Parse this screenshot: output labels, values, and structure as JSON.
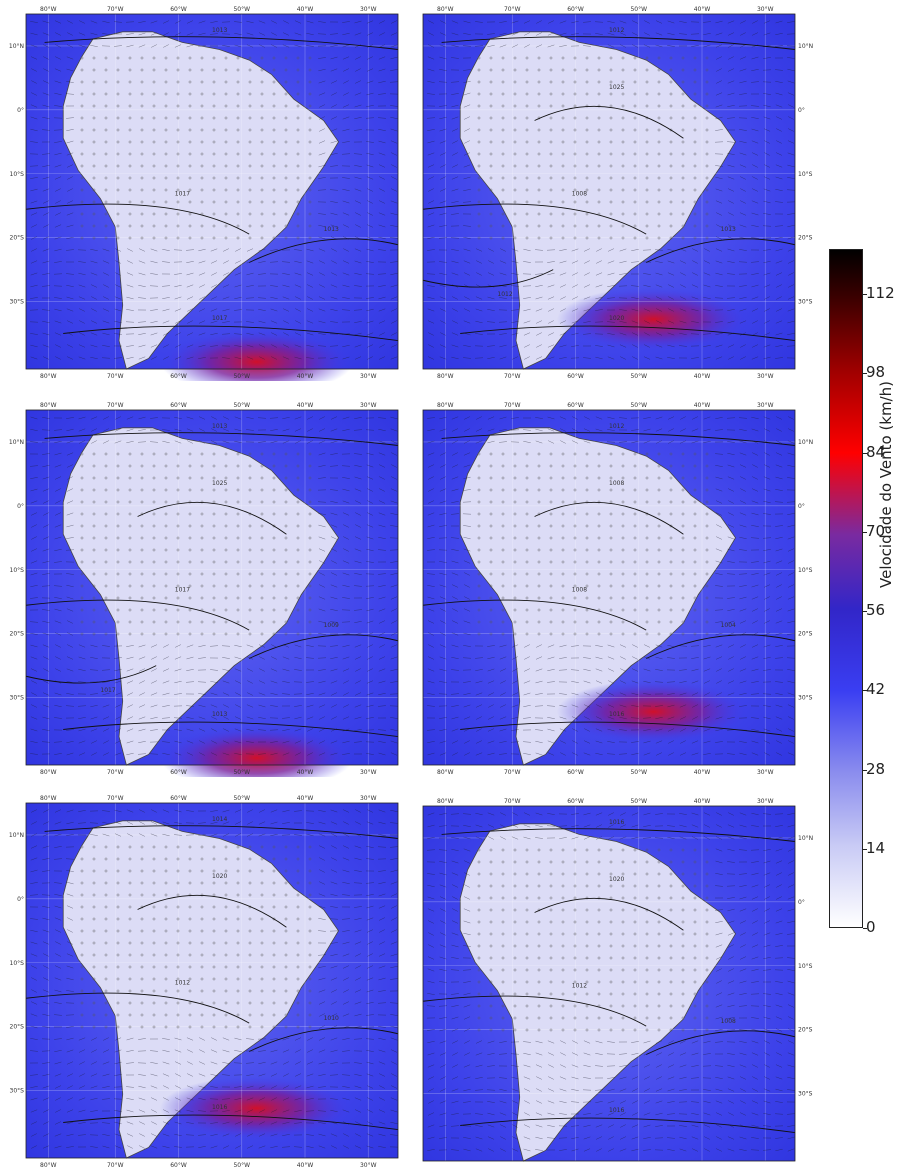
{
  "panels": [
    {
      "id": "a",
      "top_lon_labels": [
        "80°W",
        "70°W",
        "60°W",
        "50°W",
        "40°W",
        "30°W"
      ],
      "bottom_lon_labels": [
        "80°W",
        "70°W",
        "60°W",
        "50°W",
        "40°W",
        "30°W"
      ],
      "lat_labels": [
        "10°N",
        "0°",
        "10°S",
        "20°S",
        "30°S"
      ],
      "lat_side": "left",
      "isobars": [
        "1013",
        "1017",
        "1013",
        "1017"
      ],
      "jet": "south"
    },
    {
      "id": "b",
      "top_lon_labels": [
        "80°W",
        "70°W",
        "60°W",
        "50°W",
        "40°W",
        "30°W"
      ],
      "bottom_lon_labels": [
        "80°W",
        "70°W",
        "60°W",
        "50°W",
        "40°W",
        "30°W"
      ],
      "lat_labels": [
        "10°N",
        "0°",
        "10°S",
        "20°S",
        "30°S"
      ],
      "lat_side": "right",
      "isobars": [
        "1012",
        "1008",
        "1013",
        "1020",
        "1025",
        "1012"
      ],
      "jet": "southeast"
    },
    {
      "id": "c",
      "top_lon_labels": [
        "80°W",
        "70°W",
        "60°W",
        "50°W",
        "40°W",
        "30°W"
      ],
      "bottom_lon_labels": [
        "80°W",
        "70°W",
        "60°W",
        "50°W",
        "40°W",
        "30°W"
      ],
      "lat_labels": [
        "10°N",
        "0°",
        "10°S",
        "20°S",
        "30°S"
      ],
      "lat_side": "left",
      "isobars": [
        "1013",
        "1017",
        "1009",
        "1013",
        "1025",
        "1017"
      ],
      "jet": "south"
    },
    {
      "id": "d",
      "top_lon_labels": [
        "80°W",
        "70°W",
        "60°W",
        "50°W",
        "40°W",
        "30°W"
      ],
      "bottom_lon_labels": [
        "80°W",
        "70°W",
        "60°W",
        "50°W",
        "40°W",
        "30°W"
      ],
      "lat_labels": [
        "10°N",
        "0°",
        "10°S",
        "20°S",
        "30°S"
      ],
      "lat_side": "right",
      "isobars": [
        "1012",
        "1008",
        "1004",
        "1016",
        "1008"
      ],
      "jet": "east"
    },
    {
      "id": "e",
      "top_lon_labels": [
        "80°W",
        "70°W",
        "60°W",
        "50°W",
        "40°W",
        "30°W"
      ],
      "bottom_lon_labels": [
        "80°W",
        "70°W",
        "60°W",
        "50°W",
        "40°W",
        "30°W"
      ],
      "lat_labels": [
        "10°N",
        "0°",
        "10°S",
        "20°S",
        "30°S"
      ],
      "lat_side": "left",
      "isobars": [
        "1014",
        "1012",
        "1010",
        "1016",
        "1020"
      ],
      "jet": "southeast"
    },
    {
      "id": "f",
      "top_lon_labels": [
        "80°W",
        "70°W",
        "60°W",
        "50°W",
        "40°W",
        "30°W"
      ],
      "bottom_lon_labels": [],
      "lat_labels": [
        "10°N",
        "0°",
        "10°S",
        "20°S",
        "30°S"
      ],
      "lat_side": "right",
      "isobars": [
        "1016",
        "1012",
        "1008",
        "1016",
        "1020"
      ],
      "jet": "none"
    }
  ],
  "colorbar": {
    "title": "Velocidade do Vento (km/h)",
    "ticks": [
      "0",
      "14",
      "28",
      "42",
      "56",
      "70",
      "84",
      "98",
      "112"
    ],
    "vmin": 0,
    "vmax": 120,
    "colors": [
      "#ffffff",
      "#c7c9f5",
      "#7f82ee",
      "#3a3df0",
      "#2a2ad6",
      "#6a2aa6",
      "#d01030",
      "#ff0000",
      "#9a0000",
      "#3a0000",
      "#000000"
    ]
  }
}
